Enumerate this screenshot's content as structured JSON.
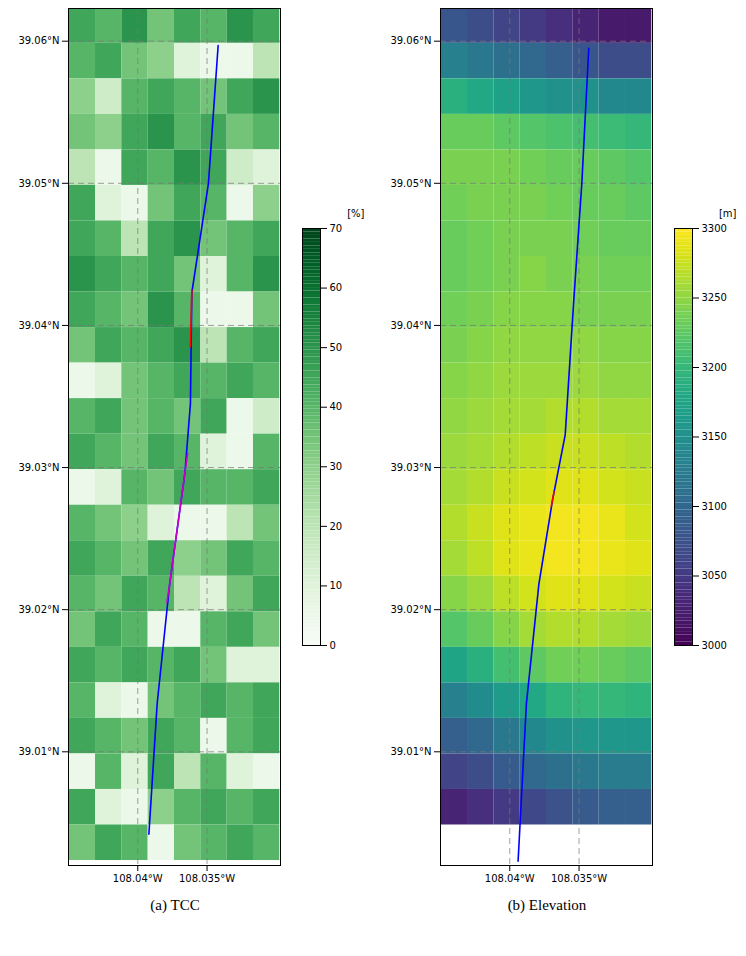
{
  "chart_data": [
    {
      "type": "heatmap",
      "caption": "(a) TCC",
      "color": "greens",
      "grid": true,
      "xlim": [
        -108.045,
        -108.0297
      ],
      "ylim": [
        39.002,
        39.0623
      ],
      "xticks": [
        {
          "value": -108.04,
          "label": "108.04°W"
        },
        {
          "value": -108.035,
          "label": "108.035°W"
        }
      ],
      "yticks": [
        {
          "value": 39.01,
          "label": "39.01°N"
        },
        {
          "value": 39.02,
          "label": "39.02°N"
        },
        {
          "value": 39.03,
          "label": "39.03°N"
        },
        {
          "value": 39.04,
          "label": "39.04°N"
        },
        {
          "value": 39.05,
          "label": "39.05°N"
        },
        {
          "value": 39.06,
          "label": "39.06°N"
        }
      ],
      "colorbar_label": "[%]",
      "colorbar_range": [
        0,
        70
      ],
      "colorbar_ticks": [
        0,
        10,
        20,
        30,
        40,
        50,
        60,
        70
      ],
      "cell_x": [
        -108.044,
        -108.0421,
        -108.0402,
        -108.0383,
        -108.0364,
        -108.0345,
        -108.0326,
        -108.0307
      ],
      "cell_y": [
        39.0611,
        39.0586,
        39.0561,
        39.0536,
        39.0511,
        39.0486,
        39.0461,
        39.0436,
        39.0411,
        39.0386,
        39.0361,
        39.0336,
        39.0311,
        39.0286,
        39.0261,
        39.0236,
        39.0211,
        39.0186,
        39.0161,
        39.0136,
        39.0111,
        39.0086,
        39.0061,
        39.0036
      ],
      "cells": [
        [
          45,
          40,
          50,
          35,
          45,
          40,
          50,
          45
        ],
        [
          40,
          45,
          35,
          30,
          10,
          5,
          5,
          20
        ],
        [
          30,
          15,
          40,
          45,
          40,
          35,
          45,
          50
        ],
        [
          35,
          30,
          45,
          50,
          40,
          45,
          35,
          40
        ],
        [
          20,
          5,
          45,
          40,
          50,
          45,
          15,
          10
        ],
        [
          45,
          10,
          5,
          35,
          45,
          40,
          5,
          30
        ],
        [
          45,
          40,
          20,
          45,
          50,
          35,
          40,
          45
        ],
        [
          50,
          45,
          40,
          45,
          35,
          10,
          40,
          50
        ],
        [
          45,
          40,
          35,
          50,
          40,
          5,
          5,
          35
        ],
        [
          35,
          45,
          40,
          45,
          50,
          20,
          40,
          45
        ],
        [
          5,
          10,
          35,
          40,
          45,
          40,
          45,
          40
        ],
        [
          40,
          45,
          35,
          40,
          35,
          45,
          5,
          15
        ],
        [
          45,
          40,
          35,
          45,
          40,
          10,
          5,
          40
        ],
        [
          5,
          10,
          40,
          35,
          45,
          40,
          40,
          45
        ],
        [
          40,
          35,
          30,
          10,
          5,
          5,
          20,
          35
        ],
        [
          45,
          40,
          35,
          45,
          30,
          35,
          45,
          40
        ],
        [
          40,
          35,
          45,
          40,
          20,
          10,
          35,
          45
        ],
        [
          35,
          45,
          40,
          5,
          5,
          40,
          45,
          35
        ],
        [
          45,
          40,
          45,
          40,
          45,
          35,
          10,
          10
        ],
        [
          40,
          10,
          5,
          35,
          40,
          45,
          40,
          45
        ],
        [
          45,
          40,
          35,
          45,
          40,
          5,
          40,
          45
        ],
        [
          5,
          40,
          10,
          45,
          20,
          40,
          10,
          5
        ],
        [
          45,
          10,
          5,
          30,
          40,
          45,
          40,
          45
        ],
        [
          35,
          45,
          40,
          5,
          35,
          40,
          45,
          40
        ]
      ],
      "series": [
        {
          "color": "#0000ff",
          "x": [
            -108.0342,
            -108.0349,
            -108.0361,
            -108.0362,
            -108.0366,
            -108.0377,
            -108.0386,
            -108.0392
          ],
          "y": [
            39.0597,
            39.05,
            39.0423,
            39.0345,
            39.0296,
            39.0218,
            39.0134,
            39.0042
          ]
        },
        {
          "color": "#cc00cc",
          "x": [
            -108.0364,
            -108.0366,
            -108.0377,
            -108.0379
          ],
          "y": [
            39.031,
            39.0296,
            39.0218,
            39.0205
          ]
        },
        {
          "color": "#ff0000",
          "x": [
            -108.0361,
            -108.0362
          ],
          "y": [
            39.0425,
            39.0385
          ]
        }
      ]
    },
    {
      "type": "heatmap",
      "caption": "(b) Elevation",
      "color": "viridis",
      "grid": true,
      "xlim": [
        -108.045,
        -108.0297
      ],
      "ylim": [
        39.002,
        39.0623
      ],
      "xticks": [
        {
          "value": -108.04,
          "label": "108.04°W"
        },
        {
          "value": -108.035,
          "label": "108.035°W"
        }
      ],
      "yticks": [
        {
          "value": 39.01,
          "label": "39.01°N"
        },
        {
          "value": 39.02,
          "label": "39.02°N"
        },
        {
          "value": 39.03,
          "label": "39.03°N"
        },
        {
          "value": 39.04,
          "label": "39.04°N"
        },
        {
          "value": 39.05,
          "label": "39.05°N"
        },
        {
          "value": 39.06,
          "label": "39.06°N"
        }
      ],
      "colorbar_label": "[m]",
      "colorbar_range": [
        3000,
        3300
      ],
      "colorbar_ticks": [
        3000,
        3050,
        3100,
        3150,
        3200,
        3250,
        3300
      ],
      "cell_x": [
        -108.044,
        -108.0421,
        -108.0402,
        -108.0383,
        -108.0364,
        -108.0345,
        -108.0326,
        -108.0307
      ],
      "cell_y": [
        39.0611,
        39.0586,
        39.0561,
        39.0536,
        39.0511,
        39.0486,
        39.0461,
        39.0436,
        39.0411,
        39.0386,
        39.0361,
        39.0336,
        39.0311,
        39.0286,
        39.0261,
        39.0236,
        39.0211,
        39.0186,
        39.0161,
        39.0136,
        39.0111,
        39.0086,
        39.0061,
        39.0036
      ],
      "cells": [
        [
          3080,
          3070,
          3060,
          3050,
          3040,
          3030,
          3020,
          3020
        ],
        [
          3130,
          3120,
          3110,
          3100,
          3090,
          3080,
          3070,
          3070
        ],
        [
          3190,
          3180,
          3170,
          3160,
          3150,
          3150,
          3140,
          3140
        ],
        [
          3230,
          3230,
          3225,
          3220,
          3215,
          3210,
          3205,
          3200
        ],
        [
          3240,
          3240,
          3240,
          3235,
          3230,
          3230,
          3225,
          3220
        ],
        [
          3235,
          3240,
          3240,
          3240,
          3235,
          3230,
          3230,
          3225
        ],
        [
          3230,
          3235,
          3240,
          3240,
          3240,
          3235,
          3230,
          3230
        ],
        [
          3230,
          3235,
          3240,
          3245,
          3240,
          3240,
          3235,
          3235
        ],
        [
          3235,
          3240,
          3245,
          3245,
          3245,
          3240,
          3240,
          3240
        ],
        [
          3240,
          3245,
          3250,
          3250,
          3250,
          3250,
          3245,
          3245
        ],
        [
          3245,
          3250,
          3255,
          3255,
          3255,
          3255,
          3250,
          3250
        ],
        [
          3250,
          3255,
          3260,
          3260,
          3265,
          3265,
          3260,
          3260
        ],
        [
          3255,
          3260,
          3265,
          3270,
          3275,
          3275,
          3270,
          3265
        ],
        [
          3260,
          3265,
          3275,
          3280,
          3285,
          3285,
          3280,
          3275
        ],
        [
          3265,
          3275,
          3285,
          3290,
          3295,
          3295,
          3290,
          3280
        ],
        [
          3260,
          3270,
          3285,
          3290,
          3295,
          3295,
          3290,
          3285
        ],
        [
          3245,
          3255,
          3270,
          3280,
          3285,
          3285,
          3280,
          3275
        ],
        [
          3220,
          3230,
          3245,
          3260,
          3265,
          3265,
          3260,
          3255
        ],
        [
          3175,
          3190,
          3210,
          3225,
          3235,
          3235,
          3230,
          3225
        ],
        [
          3130,
          3145,
          3165,
          3180,
          3195,
          3200,
          3200,
          3195
        ],
        [
          3090,
          3100,
          3120,
          3140,
          3150,
          3160,
          3160,
          3160
        ],
        [
          3060,
          3070,
          3085,
          3100,
          3110,
          3120,
          3125,
          3125
        ],
        [
          3030,
          3040,
          3050,
          3065,
          3075,
          3085,
          3090,
          3090
        ],
        [
          null,
          null,
          null,
          null,
          null,
          null,
          null,
          null
        ]
      ],
      "series": [
        {
          "color": "#0000ff",
          "x": [
            -108.0343,
            -108.0348,
            -108.0354,
            -108.036,
            -108.0369,
            -108.0379,
            -108.0388,
            -108.0394
          ],
          "y": [
            39.0595,
            39.05,
            39.0415,
            39.0323,
            39.0278,
            39.0218,
            39.0134,
            39.0023
          ]
        },
        {
          "color": "#ff0000",
          "x": [
            -108.0368,
            -108.037
          ],
          "y": [
            39.0283,
            39.0273
          ]
        }
      ]
    }
  ]
}
